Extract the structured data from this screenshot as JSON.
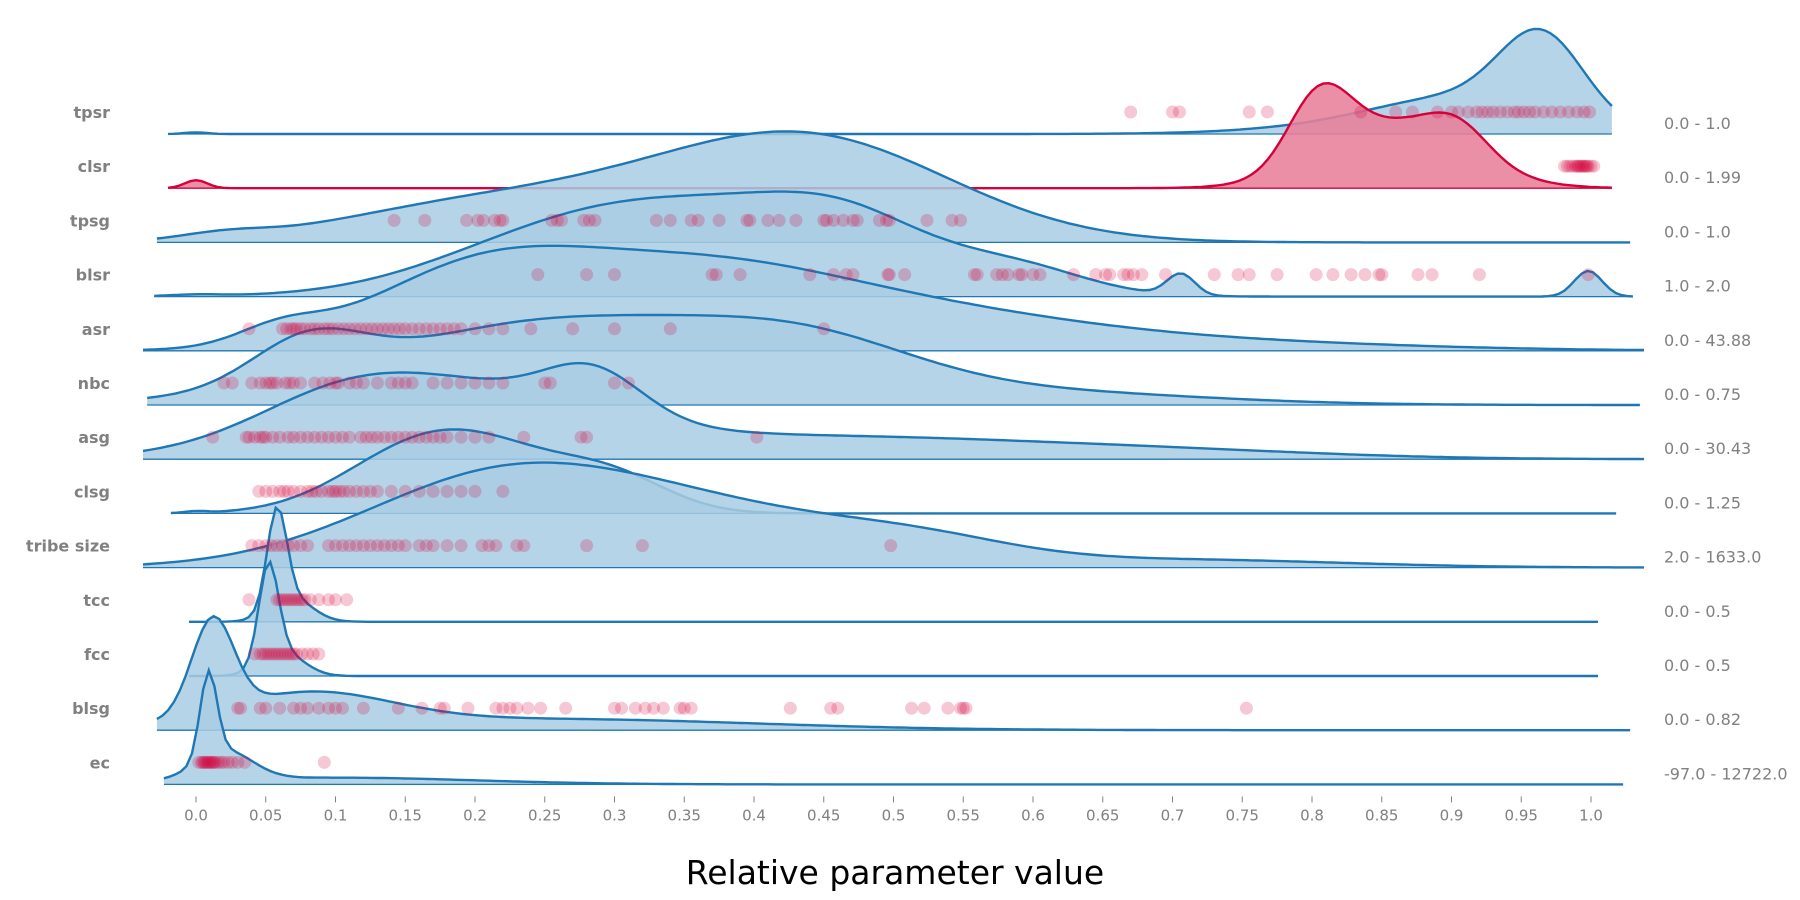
{
  "colors": {
    "normal": "#1f77b4",
    "normal_fill": "#a9cce3",
    "highlight": "#d6003a",
    "highlight_fill": "#e8809a",
    "point": "#d6003a",
    "label": "#808080"
  },
  "chart_data": {
    "type": "ridgeline",
    "xlabel": "Relative parameter value",
    "xlim": [
      -0.02,
      1.02
    ],
    "xticks": [
      "0.0",
      "0.05",
      "0.1",
      "0.15",
      "0.2",
      "0.25",
      "0.3",
      "0.35",
      "0.4",
      "0.45",
      "0.5",
      "0.55",
      "0.6",
      "0.65",
      "0.7",
      "0.75",
      "0.8",
      "0.85",
      "0.9",
      "0.95",
      "1.0"
    ],
    "rows": [
      {
        "name": "tpsr",
        "range": "0.0 - 1.0",
        "highlight": false,
        "peak_height": 1.75,
        "extent": [
          -0.02,
          1.015
        ],
        "bumps": [
          [
            0.965,
            0.03,
            1.0
          ],
          [
            0.91,
            0.06,
            0.35
          ],
          [
            0.86,
            0.08,
            0.12
          ],
          [
            0.0,
            0.008,
            0.02
          ]
        ],
        "points": [
          0.67,
          0.7,
          0.705,
          0.755,
          0.768,
          0.835,
          0.86,
          0.872,
          0.89,
          0.9,
          0.905,
          0.912,
          0.918,
          0.922,
          0.926,
          0.93,
          0.935,
          0.94,
          0.945,
          0.948,
          0.952,
          0.956,
          0.96,
          0.966,
          0.972,
          0.978,
          0.984,
          0.99,
          0.995,
          0.999
        ]
      },
      {
        "name": "clsr",
        "range": "0.0 - 1.99",
        "highlight": true,
        "peak_height": 1.75,
        "extent": [
          -0.02,
          1.015
        ],
        "bumps": [
          [
            0.805,
            0.022,
            0.85
          ],
          [
            0.86,
            0.05,
            0.8
          ],
          [
            0.905,
            0.022,
            0.35
          ],
          [
            0.0,
            0.008,
            0.1
          ]
        ],
        "points": [
          0.981,
          0.983,
          0.985,
          0.987,
          0.989,
          0.99,
          0.991,
          0.992,
          0.993,
          0.994,
          0.995,
          0.996,
          0.997,
          0.998,
          1.0,
          1.002
        ]
      },
      {
        "name": "tpsg",
        "range": "0.0 - 1.0",
        "highlight": false,
        "peak_height": 1.85,
        "extent": [
          -0.028,
          1.028
        ],
        "bumps": [
          [
            0.445,
            0.1,
            1.0
          ],
          [
            0.3,
            0.1,
            0.35
          ],
          [
            0.17,
            0.09,
            0.25
          ],
          [
            0.02,
            0.03,
            0.06
          ]
        ],
        "points": [
          0.142,
          0.164,
          0.194,
          0.202,
          0.206,
          0.214,
          0.218,
          0.22,
          0.255,
          0.259,
          0.262,
          0.278,
          0.282,
          0.286,
          0.33,
          0.34,
          0.355,
          0.36,
          0.375,
          0.395,
          0.397,
          0.41,
          0.418,
          0.43,
          0.45,
          0.452,
          0.457,
          0.464,
          0.471,
          0.474,
          0.49,
          0.495,
          0.497,
          0.524,
          0.542,
          0.548
        ]
      },
      {
        "name": "blsr",
        "range": "1.0 - 2.0",
        "highlight": false,
        "peak_height": 1.75,
        "extent": [
          -0.03,
          1.03
        ],
        "bumps": [
          [
            0.35,
            0.1,
            1.0
          ],
          [
            0.47,
            0.06,
            0.6
          ],
          [
            0.59,
            0.05,
            0.3
          ],
          [
            0.706,
            0.01,
            0.25
          ],
          [
            0.998,
            0.01,
            0.3
          ],
          [
            0.23,
            0.08,
            0.3
          ],
          [
            0.0,
            0.02,
            0.02
          ]
        ],
        "points": [
          0.245,
          0.28,
          0.3,
          0.37,
          0.373,
          0.39,
          0.44,
          0.457,
          0.466,
          0.471,
          0.496,
          0.497,
          0.508,
          0.558,
          0.56,
          0.574,
          0.578,
          0.582,
          0.59,
          0.592,
          0.6,
          0.605,
          0.629,
          0.645,
          0.652,
          0.655,
          0.665,
          0.668,
          0.672,
          0.678,
          0.695,
          0.73,
          0.747,
          0.755,
          0.775,
          0.803,
          0.815,
          0.828,
          0.838,
          0.848,
          0.85,
          0.876,
          0.886,
          0.92,
          0.998
        ]
      },
      {
        "name": "asr",
        "range": "0.0 - 43.88",
        "highlight": false,
        "peak_height": 1.75,
        "extent": [
          -0.038,
          1.038
        ],
        "bumps": [
          [
            0.2,
            0.08,
            0.9
          ],
          [
            0.35,
            0.1,
            0.85
          ],
          [
            0.06,
            0.03,
            0.2
          ],
          [
            0.5,
            0.12,
            0.45
          ],
          [
            0.7,
            0.15,
            0.12
          ]
        ],
        "points": [
          0.038,
          0.062,
          0.065,
          0.068,
          0.07,
          0.072,
          0.075,
          0.078,
          0.082,
          0.085,
          0.088,
          0.092,
          0.095,
          0.098,
          0.102,
          0.106,
          0.11,
          0.114,
          0.118,
          0.122,
          0.126,
          0.13,
          0.134,
          0.138,
          0.142,
          0.146,
          0.15,
          0.155,
          0.16,
          0.165,
          0.17,
          0.175,
          0.18,
          0.185,
          0.19,
          0.2,
          0.21,
          0.22,
          0.24,
          0.27,
          0.3,
          0.34,
          0.45
        ]
      },
      {
        "name": "nbc",
        "range": "0.0 - 0.75",
        "highlight": false,
        "peak_height": 1.5,
        "extent": [
          -0.035,
          1.035
        ],
        "bumps": [
          [
            0.26,
            0.13,
            1.0
          ],
          [
            0.08,
            0.04,
            0.5
          ],
          [
            0.44,
            0.08,
            0.5
          ],
          [
            0.6,
            0.12,
            0.15
          ]
        ],
        "points": [
          0.02,
          0.026,
          0.04,
          0.046,
          0.05,
          0.053,
          0.055,
          0.058,
          0.064,
          0.067,
          0.07,
          0.075,
          0.085,
          0.091,
          0.096,
          0.1,
          0.102,
          0.11,
          0.115,
          0.12,
          0.13,
          0.14,
          0.145,
          0.15,
          0.155,
          0.17,
          0.18,
          0.19,
          0.2,
          0.21,
          0.22,
          0.25,
          0.254,
          0.3,
          0.31
        ]
      },
      {
        "name": "asg",
        "range": "0.0 - 30.43",
        "highlight": false,
        "peak_height": 1.6,
        "extent": [
          -0.038,
          1.038
        ],
        "bumps": [
          [
            0.18,
            0.1,
            0.8
          ],
          [
            0.285,
            0.035,
            0.5
          ],
          [
            0.1,
            0.06,
            0.3
          ],
          [
            0.45,
            0.15,
            0.25
          ],
          [
            0.7,
            0.12,
            0.08
          ]
        ],
        "points": [
          0.012,
          0.036,
          0.038,
          0.042,
          0.046,
          0.048,
          0.05,
          0.055,
          0.06,
          0.066,
          0.07,
          0.075,
          0.08,
          0.085,
          0.09,
          0.095,
          0.1,
          0.105,
          0.11,
          0.118,
          0.122,
          0.126,
          0.13,
          0.135,
          0.14,
          0.145,
          0.15,
          0.155,
          0.16,
          0.165,
          0.17,
          0.175,
          0.18,
          0.19,
          0.2,
          0.21,
          0.235,
          0.276,
          0.28,
          0.402
        ]
      },
      {
        "name": "clsg",
        "range": "0.0 - 1.25",
        "highlight": false,
        "peak_height": 1.4,
        "extent": [
          -0.018,
          1.018
        ],
        "bumps": [
          [
            0.2,
            0.06,
            0.8
          ],
          [
            0.3,
            0.04,
            0.35
          ],
          [
            0.14,
            0.05,
            0.3
          ],
          [
            0.0,
            0.008,
            0.02
          ]
        ],
        "points": [
          0.045,
          0.05,
          0.055,
          0.06,
          0.063,
          0.066,
          0.07,
          0.075,
          0.08,
          0.083,
          0.086,
          0.09,
          0.095,
          0.098,
          0.1,
          0.103,
          0.106,
          0.11,
          0.115,
          0.12,
          0.125,
          0.13,
          0.14,
          0.15,
          0.16,
          0.17,
          0.18,
          0.19,
          0.2,
          0.22
        ]
      },
      {
        "name": "tribe size",
        "range": "2.0 - 1633.0",
        "highlight": false,
        "peak_height": 1.75,
        "extent": [
          -0.038,
          1.038
        ],
        "bumps": [
          [
            0.22,
            0.1,
            0.9
          ],
          [
            0.38,
            0.1,
            0.45
          ],
          [
            0.52,
            0.07,
            0.2
          ],
          [
            0.7,
            0.12,
            0.08
          ]
        ],
        "points": [
          0.04,
          0.045,
          0.05,
          0.054,
          0.058,
          0.062,
          0.066,
          0.07,
          0.075,
          0.08,
          0.095,
          0.1,
          0.105,
          0.11,
          0.115,
          0.12,
          0.125,
          0.13,
          0.135,
          0.14,
          0.145,
          0.15,
          0.16,
          0.165,
          0.17,
          0.18,
          0.19,
          0.205,
          0.21,
          0.215,
          0.23,
          0.235,
          0.28,
          0.32,
          0.498
        ]
      },
      {
        "name": "tcc",
        "range": "0.0 - 0.5",
        "highlight": false,
        "peak_height": 1.9,
        "extent": [
          -0.005,
          1.005
        ],
        "bumps": [
          [
            0.058,
            0.007,
            1.0
          ],
          [
            0.068,
            0.015,
            0.25
          ]
        ],
        "points": [
          0.038,
          0.058,
          0.06,
          0.062,
          0.064,
          0.066,
          0.068,
          0.07,
          0.072,
          0.074,
          0.076,
          0.078,
          0.082,
          0.088,
          0.095,
          0.1,
          0.108
        ]
      },
      {
        "name": "fcc",
        "range": "0.0 - 0.5",
        "highlight": false,
        "peak_height": 1.9,
        "extent": [
          -0.005,
          1.005
        ],
        "bumps": [
          [
            0.052,
            0.007,
            1.0
          ],
          [
            0.062,
            0.015,
            0.25
          ]
        ],
        "points": [
          0.042,
          0.046,
          0.048,
          0.05,
          0.052,
          0.054,
          0.056,
          0.058,
          0.06,
          0.062,
          0.064,
          0.066,
          0.068,
          0.07,
          0.072,
          0.076,
          0.08,
          0.084,
          0.088
        ]
      },
      {
        "name": "blsg",
        "range": "0.0 - 0.82",
        "highlight": false,
        "peak_height": 1.9,
        "extent": [
          -0.028,
          1.028
        ],
        "bumps": [
          [
            0.012,
            0.015,
            1.0
          ],
          [
            0.08,
            0.06,
            0.35
          ],
          [
            0.25,
            0.15,
            0.12
          ]
        ],
        "points": [
          0.03,
          0.032,
          0.046,
          0.05,
          0.06,
          0.07,
          0.075,
          0.08,
          0.088,
          0.095,
          0.1,
          0.105,
          0.12,
          0.145,
          0.162,
          0.175,
          0.178,
          0.195,
          0.215,
          0.22,
          0.225,
          0.23,
          0.238,
          0.247,
          0.265,
          0.3,
          0.305,
          0.315,
          0.322,
          0.328,
          0.335,
          0.347,
          0.35,
          0.355,
          0.426,
          0.455,
          0.46,
          0.513,
          0.522,
          0.539,
          0.548,
          0.55,
          0.552,
          0.753
        ]
      },
      {
        "name": "ec",
        "range": "-97.0 - 12722.0",
        "highlight": false,
        "peak_height": 1.9,
        "extent": [
          -0.023,
          1.023
        ],
        "bumps": [
          [
            0.009,
            0.006,
            1.0
          ],
          [
            0.02,
            0.02,
            0.35
          ],
          [
            0.1,
            0.1,
            0.08
          ]
        ],
        "points": [
          0.002,
          0.004,
          0.005,
          0.006,
          0.007,
          0.008,
          0.009,
          0.01,
          0.011,
          0.012,
          0.013,
          0.014,
          0.016,
          0.018,
          0.02,
          0.023,
          0.026,
          0.03,
          0.035,
          0.092
        ]
      }
    ]
  }
}
